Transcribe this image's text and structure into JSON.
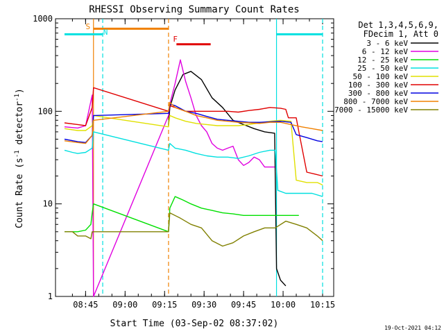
{
  "chart_data": {
    "type": "line",
    "title": "RHESSI Observing Summary Count Rates",
    "xlabel": "Start Time (03-Sep-02 08:37:02)",
    "ylabel_main": "Count Rate (s",
    "ylabel_sup1": "-1",
    "ylabel_mid": " detector",
    "ylabel_sup2": "-1",
    "ylabel_end": ")",
    "y_scale": "log",
    "ylim": [
      1,
      1000
    ],
    "x_unit": "minutes since 08:37:02",
    "xlim": [
      0,
      98
    ],
    "x_ticks": [
      {
        "x": 8,
        "label": "08:45"
      },
      {
        "x": 23,
        "label": "09:00"
      },
      {
        "x": 38,
        "label": "09:15"
      },
      {
        "x": 53,
        "label": "09:30"
      },
      {
        "x": 68,
        "label": "09:45"
      },
      {
        "x": 83,
        "label": "10:00"
      },
      {
        "x": 98,
        "label": "10:15"
      }
    ],
    "y_ticks": [
      {
        "y": 1,
        "label": "1"
      },
      {
        "y": 10,
        "label": "10"
      },
      {
        "y": 100,
        "label": "100"
      },
      {
        "y": 1000,
        "label": "1000"
      }
    ],
    "legend_header": [
      "Det 1,3,4,5,6,9,",
      "FDecim 1, Att 0"
    ],
    "legend_placement": "right",
    "timestamp": "19-Oct-2021 04:12",
    "series": [
      {
        "name": "3 - 6 keV",
        "color": "#000000",
        "x": [
          39.5,
          40,
          42,
          45,
          48,
          52,
          56,
          60,
          64,
          68,
          72,
          76,
          79.8,
          80.5,
          82,
          84
        ],
        "y": [
          70,
          110,
          170,
          250,
          270,
          220,
          140,
          110,
          80,
          72,
          65,
          60,
          58,
          2,
          1.5,
          1.3
        ]
      },
      {
        "name": "6 - 12 keV",
        "color": "#e000e0",
        "x": [
          0,
          5,
          8,
          10.5,
          11,
          39.5,
          40,
          42,
          44,
          46,
          48,
          50,
          52,
          54,
          56,
          58,
          60,
          62,
          64,
          66,
          68,
          70,
          72,
          74,
          76,
          79.8
        ],
        "y": [
          68,
          66,
          70,
          150,
          1,
          90,
          120,
          200,
          360,
          210,
          140,
          90,
          70,
          60,
          45,
          40,
          38,
          40,
          42,
          30,
          26,
          28,
          32,
          30,
          25,
          25
        ]
      },
      {
        "name": "12 - 25 keV",
        "color": "#00e000",
        "x": [
          0,
          5,
          8,
          10,
          10.5,
          11,
          39.5,
          40,
          42,
          45,
          48,
          52,
          56,
          60,
          64,
          68,
          72,
          76,
          80,
          84,
          87,
          89
        ],
        "y": [
          5.0,
          5.0,
          5.2,
          6,
          8,
          10,
          5,
          9,
          12,
          11,
          10,
          9,
          8.5,
          8,
          7.8,
          7.5,
          7.5,
          7.5,
          7.5,
          7.5,
          7.5,
          7.5
        ]
      },
      {
        "name": "25 - 50 keV",
        "color": "#00e0e0",
        "x": [
          0,
          3,
          5,
          8,
          10.5,
          11,
          39.5,
          40,
          42,
          46,
          50,
          54,
          58,
          62,
          66,
          70,
          74,
          78,
          80,
          81,
          84,
          87,
          90,
          94,
          98
        ],
        "y": [
          38,
          36,
          35,
          36,
          40,
          60,
          38,
          45,
          40,
          38,
          35,
          33,
          32,
          32,
          31,
          33,
          36,
          38,
          38,
          14,
          13,
          13,
          13,
          13,
          12
        ]
      },
      {
        "name": "50 - 100 keV",
        "color": "#e0e000",
        "x": [
          0,
          5,
          8,
          10.5,
          11,
          39.5,
          40,
          42,
          46,
          50,
          54,
          58,
          62,
          66,
          70,
          74,
          78,
          82,
          86,
          88,
          92,
          96,
          98
        ],
        "y": [
          65,
          62,
          62,
          70,
          90,
          68,
          90,
          85,
          78,
          74,
          72,
          70,
          70,
          70,
          72,
          75,
          78,
          80,
          78,
          18,
          17,
          17,
          16
        ]
      },
      {
        "name": "100 - 300 keV",
        "color": "#e00000",
        "x": [
          0,
          5,
          8,
          10.5,
          11,
          39.5,
          40,
          42,
          46,
          50,
          54,
          58,
          62,
          66,
          70,
          74,
          78,
          82,
          84,
          85,
          88,
          89,
          92,
          95,
          98
        ],
        "y": [
          75,
          72,
          70,
          110,
          180,
          100,
          115,
          110,
          100,
          100,
          100,
          100,
          100,
          98,
          102,
          105,
          110,
          108,
          105,
          85,
          85,
          60,
          22,
          21,
          20
        ]
      },
      {
        "name": "300 - 800 keV",
        "color": "#0000e0",
        "x": [
          0,
          5,
          8,
          10.5,
          11,
          39.5,
          40,
          42,
          46,
          50,
          54,
          58,
          62,
          66,
          70,
          74,
          78,
          82,
          86,
          88,
          92,
          96,
          98
        ],
        "y": [
          50,
          47,
          46,
          55,
          90,
          95,
          120,
          115,
          100,
          95,
          88,
          82,
          80,
          78,
          76,
          76,
          77,
          78,
          76,
          56,
          52,
          48,
          47
        ]
      },
      {
        "name": "800 - 7000 keV",
        "color": "#f08000",
        "x": [
          0,
          5,
          8,
          10.5,
          11,
          39.5,
          40,
          42,
          46,
          50,
          54,
          58,
          62,
          66,
          70,
          74,
          78,
          82,
          86,
          90,
          94,
          98
        ],
        "y": [
          48,
          46,
          45,
          55,
          80,
          100,
          125,
          110,
          100,
          90,
          85,
          80,
          78,
          76,
          75,
          74,
          76,
          76,
          72,
          68,
          65,
          62
        ]
      },
      {
        "name": "7000 - 15000 keV",
        "color": "#808000",
        "x": [
          0,
          3,
          5,
          8,
          10,
          10.5,
          39.5,
          40,
          44,
          48,
          52,
          56,
          60,
          64,
          68,
          72,
          76,
          80,
          84,
          88,
          92,
          96,
          98
        ],
        "y": [
          5,
          5,
          4.5,
          4.5,
          4.2,
          5,
          5,
          8,
          7,
          6,
          5.5,
          4,
          3.5,
          3.8,
          4.5,
          5,
          5.5,
          5.5,
          6.5,
          6,
          5.5,
          4.5,
          4
        ]
      }
    ],
    "annotations": [
      {
        "label": "S",
        "color": "#f08000",
        "x": 11
      },
      {
        "label": "N",
        "color": "#00e0e0",
        "x": 14.5
      },
      {
        "label": "F",
        "color": "#e00000",
        "x": 41
      }
    ],
    "attenuator_bars": [
      {
        "color": "#00e0e0",
        "x0": 0,
        "x1": 14.5,
        "y": 680
      },
      {
        "color": "#f08000",
        "x0": 11,
        "x1": 39.5,
        "y": 780
      },
      {
        "color": "#e00000",
        "x0": 42.5,
        "x1": 55.5,
        "y": 530
      },
      {
        "color": "#00e0e0",
        "x0": 80.5,
        "x1": 98,
        "y": 680
      }
    ],
    "night_markers": [
      {
        "color": "#00e0e0",
        "x": 14.5,
        "style": "dashed"
      },
      {
        "color": "#00e0e0",
        "x": 80.5,
        "style": "solid"
      },
      {
        "color": "#00e0e0",
        "x": 98,
        "style": "dashed"
      },
      {
        "color": "#f08000",
        "x": 11,
        "style": "solid"
      },
      {
        "color": "#f08000",
        "x": 39.5,
        "style": "dashed"
      }
    ]
  }
}
